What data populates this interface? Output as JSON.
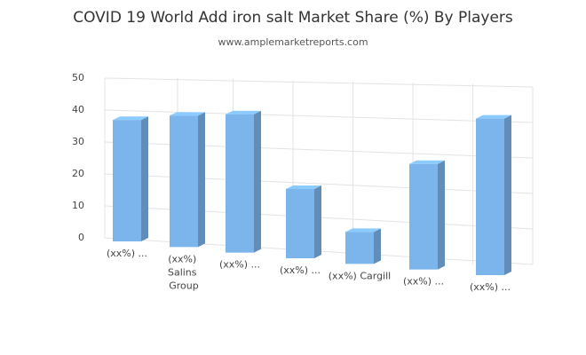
{
  "chart_data": {
    "type": "bar3d",
    "title": "COVID 19 World Add iron salt Market Share (%) By Players",
    "subtitle": "www.amplemarketreports.com",
    "categories": [
      "(xx%) ...",
      "(xx%) Salins Group",
      "(xx%) ...",
      "(xx%) ...",
      "(xx%) Cargill",
      "(xx%) ...",
      "(xx%) ..."
    ],
    "values": [
      38,
      40,
      41,
      20,
      9,
      29,
      42
    ],
    "color": "#7cb5ec",
    "ylim": [
      0,
      50
    ],
    "yticks": [
      0,
      10,
      20,
      30,
      40,
      50
    ],
    "grid": true
  }
}
